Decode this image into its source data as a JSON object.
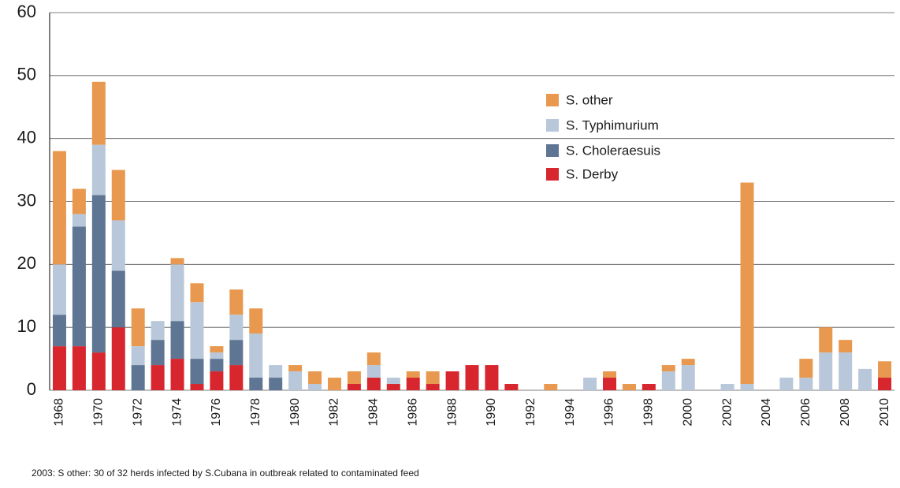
{
  "chart_data": {
    "type": "stacked_bar",
    "categories": [
      "1968",
      null,
      "1970",
      null,
      "1972",
      null,
      "1974",
      null,
      "1976",
      null,
      "1978",
      null,
      "1980",
      null,
      "1982",
      null,
      "1984",
      null,
      "1986",
      null,
      "1988",
      null,
      "1990",
      null,
      "1992",
      null,
      "1994",
      null,
      "1996",
      null,
      "1998",
      null,
      "2000",
      null,
      "2002",
      null,
      "2004",
      null,
      "2006",
      null,
      "2008",
      null,
      "2010"
    ],
    "series": [
      {
        "name": "S. Derby",
        "color": "#d7262d",
        "values": [
          7,
          7,
          6,
          10,
          0,
          4,
          5,
          1,
          3,
          4,
          0,
          0,
          0,
          0,
          0,
          1,
          2,
          1,
          2,
          1,
          3,
          4,
          4,
          1,
          0,
          0,
          0,
          0,
          2,
          0,
          1,
          0,
          0,
          0,
          0,
          0,
          0,
          0,
          0,
          0,
          0,
          0,
          2
        ]
      },
      {
        "name": "S. Choleraesuis",
        "color": "#5e7594",
        "values": [
          5,
          19,
          25,
          9,
          4,
          4,
          6,
          4,
          2,
          4,
          2,
          2,
          0,
          0,
          0,
          0,
          0,
          0,
          0,
          0,
          0,
          0,
          0,
          0,
          0,
          0,
          0,
          0,
          0,
          0,
          0,
          0,
          0,
          0,
          0,
          0,
          0,
          0,
          0,
          0,
          0,
          0,
          0
        ]
      },
      {
        "name": "S. Typhimurium",
        "color": "#b8c8da",
        "values": [
          8,
          2,
          8,
          8,
          3,
          3,
          9,
          9,
          1,
          4,
          7,
          2,
          3,
          1,
          0,
          0,
          2,
          1,
          0,
          0,
          0,
          0,
          0,
          0,
          0,
          0,
          0,
          2,
          0,
          0,
          0,
          3,
          4,
          0,
          1,
          1,
          0,
          2,
          2,
          6,
          6,
          3.4,
          0
        ]
      },
      {
        "name": "S. other",
        "color": "#e8994f",
        "values": [
          18,
          4,
          10,
          8,
          6,
          0,
          1,
          3,
          1,
          4,
          4,
          0,
          1,
          2,
          2,
          2,
          2,
          0,
          1,
          2,
          0,
          0,
          0,
          0,
          0,
          1,
          0,
          0,
          1,
          1,
          0,
          1,
          1,
          0,
          0,
          32,
          0,
          0,
          3,
          4,
          2,
          0,
          2.6
        ]
      }
    ],
    "ylim": [
      0,
      60
    ],
    "yticks": [
      0,
      10,
      20,
      30,
      40,
      50,
      60
    ],
    "grid": true,
    "legend": "upper-center",
    "annotations": [
      "2003: S other: 30 of 32 herds infected by S.Cubana in outbreak related to contaminated feed"
    ]
  }
}
